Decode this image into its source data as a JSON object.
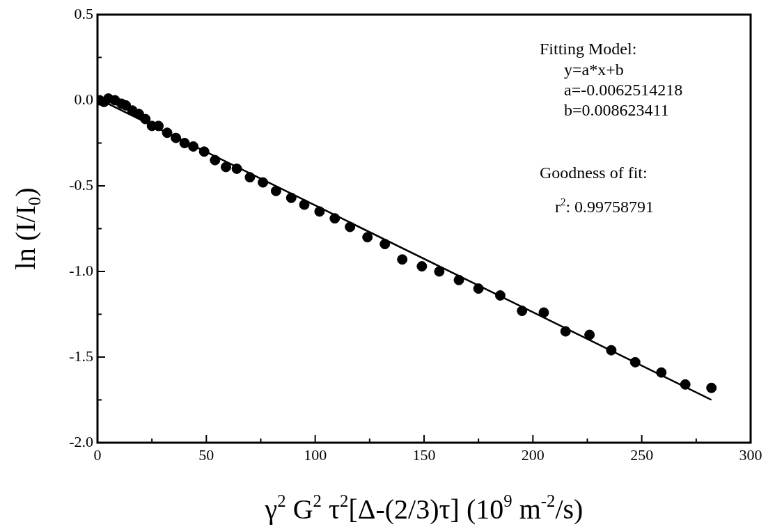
{
  "chart_data": {
    "type": "scatter",
    "xlabel": "γ$^{2}$ G$^{2}$ τ$^{2}$[Δ-(2/3)τ] (10$^{9}$ m$^{-2}$/s)",
    "ylabel": "ln (I/I$_{0}$)",
    "annotations": [
      "Fitting Model:",
      "y=a*x+b",
      "a=-0.0062514218",
      "b=0.008623411",
      "Goodness of fit:",
      "r$^{2}$: 0.99758791"
    ],
    "xlim": [
      0,
      300
    ],
    "xticks": [
      0,
      {
        "value": 25,
        "label": null
      },
      50,
      {
        "value": 75,
        "label": null
      },
      100,
      {
        "value": 125,
        "label": null
      },
      150,
      {
        "value": 175,
        "label": null
      },
      200,
      {
        "value": 225,
        "label": null
      },
      250,
      {
        "value": 275,
        "label": null
      },
      300
    ],
    "ylim": [
      -2.0,
      0.5
    ],
    "yticks": [
      {
        "value": -2,
        "label": "-2.0"
      },
      {
        "value": -1.75,
        "label": null
      },
      {
        "value": -1.5,
        "label": "-1.5"
      },
      {
        "value": -1.25,
        "label": null
      },
      {
        "value": -1,
        "label": "-1.0"
      },
      {
        "value": -0.75,
        "label": null
      },
      {
        "value": -0.5,
        "label": "-0.5"
      },
      {
        "value": -0.25,
        "label": null
      },
      {
        "value": 0,
        "label": "0.0"
      },
      {
        "value": 0.25,
        "label": null
      },
      {
        "value": 0.5,
        "label": "0.5"
      }
    ],
    "grid": false,
    "legend": false,
    "marker": "circle",
    "series": [
      {
        "color": "#000000",
        "x": [
          1,
          3,
          5,
          8,
          11,
          13,
          16,
          19,
          22,
          25,
          28,
          32,
          36,
          40,
          44,
          49,
          54,
          59,
          64,
          70,
          76,
          82,
          89,
          95,
          102,
          109,
          116,
          124,
          132,
          140,
          149,
          157,
          166,
          175,
          185,
          195,
          205,
          215,
          226,
          236,
          247,
          259,
          270,
          282
        ],
        "values": [
          0.0,
          -0.01,
          0.01,
          0.0,
          -0.02,
          -0.03,
          -0.06,
          -0.08,
          -0.11,
          -0.15,
          -0.15,
          -0.19,
          -0.22,
          -0.25,
          -0.27,
          -0.3,
          -0.35,
          -0.39,
          -0.4,
          -0.45,
          -0.48,
          -0.53,
          -0.57,
          -0.61,
          -0.65,
          -0.69,
          -0.74,
          -0.8,
          -0.84,
          -0.93,
          -0.97,
          -1.0,
          -1.05,
          -1.1,
          -1.14,
          -1.23,
          -1.24,
          -1.35,
          -1.37,
          -1.46,
          -1.53,
          -1.59,
          -1.66,
          -1.68
        ]
      },
      {
        "type": "line",
        "color": "#000000",
        "marker": "none",
        "line_style": "solid",
        "x": [
          0,
          282
        ],
        "values": [
          0.01,
          -1.75
        ]
      }
    ]
  }
}
